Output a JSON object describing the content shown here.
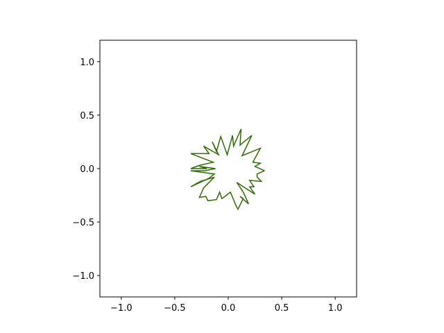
{
  "chart_data": {
    "type": "line",
    "title": "",
    "xlabel": "",
    "ylabel": "",
    "xlim": [
      -1.2,
      1.2
    ],
    "ylim": [
      -1.2,
      1.2
    ],
    "aspect": "equal",
    "grid": false,
    "legend": "none",
    "x_ticks": [
      -1.0,
      -0.5,
      0.0,
      0.5,
      1.0
    ],
    "y_ticks": [
      -1.0,
      -0.5,
      0.0,
      0.5,
      1.0
    ],
    "x_tick_labels": [
      "−1.0",
      "−0.5",
      "0.0",
      "0.5",
      "1.0"
    ],
    "y_tick_labels": [
      "−1.0",
      "−0.5",
      "0.0",
      "0.5",
      "1.0"
    ],
    "series": [
      {
        "color": "#2e6b00",
        "closed": true,
        "points": [
          [
            0.34,
            -0.02
          ],
          [
            0.25,
            0.02
          ],
          [
            0.3,
            0.05
          ],
          [
            0.23,
            0.06
          ],
          [
            0.3,
            0.19
          ],
          [
            0.13,
            0.12
          ],
          [
            0.22,
            0.31
          ],
          [
            0.11,
            0.22
          ],
          [
            0.12,
            0.37
          ],
          [
            0.05,
            0.21
          ],
          [
            0.04,
            0.31
          ],
          [
            -0.01,
            0.13
          ],
          [
            -0.07,
            0.3
          ],
          [
            -0.11,
            0.16
          ],
          [
            -0.15,
            0.25
          ],
          [
            -0.09,
            0.13
          ],
          [
            -0.23,
            0.21
          ],
          [
            -0.18,
            0.14
          ],
          [
            -0.35,
            0.14
          ],
          [
            -0.14,
            0.06
          ],
          [
            -0.27,
            0.03
          ],
          [
            -0.35,
            0.0
          ],
          [
            -0.2,
            0.0
          ],
          [
            -0.27,
            0.02
          ],
          [
            -0.12,
            0.0
          ],
          [
            -0.22,
            -0.02
          ],
          [
            -0.35,
            -0.02
          ],
          [
            -0.13,
            -0.05
          ],
          [
            -0.18,
            -0.09
          ],
          [
            -0.35,
            -0.17
          ],
          [
            -0.26,
            -0.12
          ],
          [
            -0.13,
            -0.08
          ],
          [
            -0.23,
            -0.18
          ],
          [
            -0.27,
            -0.27
          ],
          [
            -0.21,
            -0.26
          ],
          [
            -0.19,
            -0.3
          ],
          [
            -0.11,
            -0.29
          ],
          [
            -0.08,
            -0.22
          ],
          [
            -0.06,
            -0.28
          ],
          [
            -0.03,
            -0.26
          ],
          [
            0.02,
            -0.22
          ],
          [
            0.07,
            -0.34
          ],
          [
            0.09,
            -0.38
          ],
          [
            0.14,
            -0.28
          ],
          [
            0.11,
            -0.26
          ],
          [
            0.19,
            -0.33
          ],
          [
            0.14,
            -0.22
          ],
          [
            0.08,
            -0.13
          ],
          [
            0.25,
            -0.24
          ],
          [
            0.2,
            -0.17
          ],
          [
            0.24,
            -0.17
          ],
          [
            0.2,
            -0.11
          ],
          [
            0.31,
            -0.12
          ],
          [
            0.27,
            -0.08
          ],
          [
            0.27,
            -0.05
          ],
          [
            0.34,
            -0.02
          ]
        ]
      }
    ]
  }
}
